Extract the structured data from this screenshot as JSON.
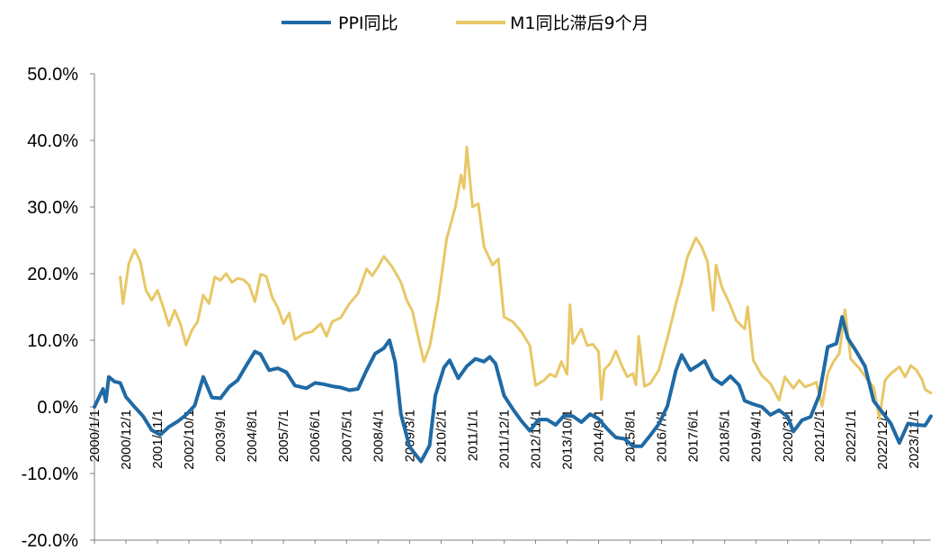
{
  "chart_data": {
    "type": "line",
    "title": "",
    "xlabel": "",
    "ylabel": "",
    "ylim": [
      -0.2,
      0.5
    ],
    "y_ticks": [
      "50.0%",
      "40.0%",
      "30.0%",
      "20.0%",
      "10.0%",
      "0.0%",
      "-10.0%",
      "-20.0%"
    ],
    "x_tick_labels": [
      "2000/1/1",
      "2000/12/1",
      "2001/11/1",
      "2002/10/1",
      "2003/9/1",
      "2004/8/1",
      "2005/7/1",
      "2006/6/1",
      "2007/5/1",
      "2008/4/1",
      "2009/3/1",
      "2010/2/1",
      "2011/1/1",
      "2011/12/1",
      "2012/11/1",
      "2013/10/1",
      "2014/9/1",
      "2015/8/1",
      "2016/7/1",
      "2017/6/1",
      "2018/5/1",
      "2019/4/1",
      "2020/3/1",
      "2021/2/1",
      "2022/1/1",
      "2022/12/1",
      "2023/11/1"
    ],
    "legend_position": "top",
    "grid": false,
    "series": [
      {
        "name": "PPI同比",
        "color": "#1f6aa5",
        "points": [
          [
            "2000/1",
            0.0
          ],
          [
            "2000/4",
            0.027
          ],
          [
            "2000/5",
            0.008
          ],
          [
            "2000/6",
            0.045
          ],
          [
            "2000/8",
            0.038
          ],
          [
            "2000/10",
            0.036
          ],
          [
            "2000/12",
            0.015
          ],
          [
            "2001/3",
            0.0
          ],
          [
            "2001/6",
            -0.014
          ],
          [
            "2001/9",
            -0.035
          ],
          [
            "2001/12",
            -0.042
          ],
          [
            "2002/3",
            -0.03
          ],
          [
            "2002/6",
            -0.022
          ],
          [
            "2002/9",
            -0.012
          ],
          [
            "2002/12",
            0.002
          ],
          [
            "2003/3",
            0.045
          ],
          [
            "2003/6",
            0.014
          ],
          [
            "2003/9",
            0.013
          ],
          [
            "2003/12",
            0.03
          ],
          [
            "2004/3",
            0.04
          ],
          [
            "2004/6",
            0.062
          ],
          [
            "2004/9",
            0.083
          ],
          [
            "2004/11",
            0.079
          ],
          [
            "2005/2",
            0.055
          ],
          [
            "2005/5",
            0.058
          ],
          [
            "2005/8",
            0.052
          ],
          [
            "2005/11",
            0.032
          ],
          [
            "2006/3",
            0.028
          ],
          [
            "2006/6",
            0.036
          ],
          [
            "2006/9",
            0.034
          ],
          [
            "2006/12",
            0.031
          ],
          [
            "2007/3",
            0.029
          ],
          [
            "2007/6",
            0.025
          ],
          [
            "2007/9",
            0.027
          ],
          [
            "2007/12",
            0.055
          ],
          [
            "2008/3",
            0.08
          ],
          [
            "2008/6",
            0.088
          ],
          [
            "2008/8",
            0.1
          ],
          [
            "2008/10",
            0.067
          ],
          [
            "2008/12",
            -0.011
          ],
          [
            "2009/3",
            -0.06
          ],
          [
            "2009/7",
            -0.082
          ],
          [
            "2009/10",
            -0.058
          ],
          [
            "2009/12",
            0.017
          ],
          [
            "2010/3",
            0.059
          ],
          [
            "2010/5",
            0.07
          ],
          [
            "2010/8",
            0.043
          ],
          [
            "2010/11",
            0.061
          ],
          [
            "2011/2",
            0.072
          ],
          [
            "2011/5",
            0.068
          ],
          [
            "2011/7",
            0.075
          ],
          [
            "2011/9",
            0.065
          ],
          [
            "2011/12",
            0.017
          ],
          [
            "2012/3",
            -0.003
          ],
          [
            "2012/6",
            -0.021
          ],
          [
            "2012/9",
            -0.036
          ],
          [
            "2012/12",
            -0.019
          ],
          [
            "2013/3",
            -0.019
          ],
          [
            "2013/6",
            -0.027
          ],
          [
            "2013/9",
            -0.013
          ],
          [
            "2013/12",
            -0.014
          ],
          [
            "2014/3",
            -0.023
          ],
          [
            "2014/6",
            -0.011
          ],
          [
            "2014/9",
            -0.018
          ],
          [
            "2014/12",
            -0.033
          ],
          [
            "2015/3",
            -0.046
          ],
          [
            "2015/6",
            -0.048
          ],
          [
            "2015/9",
            -0.059
          ],
          [
            "2015/12",
            -0.059
          ],
          [
            "2016/3",
            -0.043
          ],
          [
            "2016/6",
            -0.026
          ],
          [
            "2016/9",
            0.001
          ],
          [
            "2016/12",
            0.055
          ],
          [
            "2017/2",
            0.078
          ],
          [
            "2017/5",
            0.055
          ],
          [
            "2017/8",
            0.063
          ],
          [
            "2017/10",
            0.069
          ],
          [
            "2018/1",
            0.043
          ],
          [
            "2018/4",
            0.034
          ],
          [
            "2018/7",
            0.046
          ],
          [
            "2018/10",
            0.033
          ],
          [
            "2018/12",
            0.009
          ],
          [
            "2019/3",
            0.004
          ],
          [
            "2019/6",
            0.0
          ],
          [
            "2019/9",
            -0.012
          ],
          [
            "2019/12",
            -0.005
          ],
          [
            "2020/3",
            -0.015
          ],
          [
            "2020/5",
            -0.037
          ],
          [
            "2020/8",
            -0.02
          ],
          [
            "2020/11",
            -0.015
          ],
          [
            "2021/2",
            0.017
          ],
          [
            "2021/5",
            0.09
          ],
          [
            "2021/8",
            0.095
          ],
          [
            "2021/10",
            0.135
          ],
          [
            "2021/12",
            0.103
          ],
          [
            "2022/3",
            0.083
          ],
          [
            "2022/6",
            0.061
          ],
          [
            "2022/9",
            0.009
          ],
          [
            "2022/12",
            -0.008
          ],
          [
            "2023/3",
            -0.025
          ],
          [
            "2023/6",
            -0.054
          ],
          [
            "2023/9",
            -0.025
          ],
          [
            "2023/12",
            -0.027
          ],
          [
            "2024/3",
            -0.028
          ],
          [
            "2024/5",
            -0.014
          ]
        ]
      },
      {
        "name": "M1同比滞后9个月",
        "color": "#e8c766",
        "points": [
          [
            "2000/10",
            0.195
          ],
          [
            "2000/11",
            0.155
          ],
          [
            "2001/1",
            0.215
          ],
          [
            "2001/3",
            0.236
          ],
          [
            "2001/5",
            0.218
          ],
          [
            "2001/7",
            0.175
          ],
          [
            "2001/9",
            0.16
          ],
          [
            "2001/11",
            0.175
          ],
          [
            "2002/1",
            0.15
          ],
          [
            "2002/3",
            0.122
          ],
          [
            "2002/5",
            0.145
          ],
          [
            "2002/7",
            0.125
          ],
          [
            "2002/9",
            0.093
          ],
          [
            "2002/11",
            0.115
          ],
          [
            "2003/1",
            0.128
          ],
          [
            "2003/3",
            0.168
          ],
          [
            "2003/5",
            0.155
          ],
          [
            "2003/7",
            0.195
          ],
          [
            "2003/9",
            0.19
          ],
          [
            "2003/11",
            0.2
          ],
          [
            "2004/1",
            0.187
          ],
          [
            "2004/3",
            0.193
          ],
          [
            "2004/5",
            0.191
          ],
          [
            "2004/7",
            0.183
          ],
          [
            "2004/9",
            0.158
          ],
          [
            "2004/11",
            0.199
          ],
          [
            "2005/1",
            0.196
          ],
          [
            "2005/3",
            0.165
          ],
          [
            "2005/5",
            0.149
          ],
          [
            "2005/7",
            0.125
          ],
          [
            "2005/9",
            0.141
          ],
          [
            "2005/11",
            0.101
          ],
          [
            "2006/2",
            0.11
          ],
          [
            "2006/5",
            0.113
          ],
          [
            "2006/8",
            0.125
          ],
          [
            "2006/10",
            0.106
          ],
          [
            "2006/12",
            0.128
          ],
          [
            "2007/3",
            0.134
          ],
          [
            "2007/6",
            0.155
          ],
          [
            "2007/9",
            0.17
          ],
          [
            "2007/12",
            0.207
          ],
          [
            "2008/2",
            0.197
          ],
          [
            "2008/4",
            0.21
          ],
          [
            "2008/6",
            0.226
          ],
          [
            "2008/9",
            0.21
          ],
          [
            "2008/12",
            0.187
          ],
          [
            "2009/2",
            0.16
          ],
          [
            "2009/4",
            0.144
          ],
          [
            "2009/6",
            0.105
          ],
          [
            "2009/8",
            0.068
          ],
          [
            "2009/10",
            0.09
          ],
          [
            "2010/1",
            0.16
          ],
          [
            "2010/4",
            0.253
          ],
          [
            "2010/7",
            0.3
          ],
          [
            "2010/9",
            0.348
          ],
          [
            "2010/10",
            0.328
          ],
          [
            "2010/11",
            0.39
          ],
          [
            "2011/1",
            0.3
          ],
          [
            "2011/3",
            0.305
          ],
          [
            "2011/5",
            0.24
          ],
          [
            "2011/8",
            0.213
          ],
          [
            "2011/10",
            0.222
          ],
          [
            "2011/12",
            0.135
          ],
          [
            "2012/3",
            0.128
          ],
          [
            "2012/6",
            0.113
          ],
          [
            "2012/9",
            0.092
          ],
          [
            "2012/11",
            0.032
          ],
          [
            "2013/2",
            0.04
          ],
          [
            "2013/4",
            0.049
          ],
          [
            "2013/6",
            0.045
          ],
          [
            "2013/8",
            0.068
          ],
          [
            "2013/10",
            0.049
          ],
          [
            "2013/11",
            0.153
          ],
          [
            "2013/12",
            0.095
          ],
          [
            "2014/3",
            0.117
          ],
          [
            "2014/5",
            0.092
          ],
          [
            "2014/7",
            0.094
          ],
          [
            "2014/9",
            0.083
          ],
          [
            "2014/10",
            0.011
          ],
          [
            "2014/11",
            0.056
          ],
          [
            "2015/1",
            0.065
          ],
          [
            "2015/3",
            0.084
          ],
          [
            "2015/5",
            0.063
          ],
          [
            "2015/7",
            0.045
          ],
          [
            "2015/9",
            0.05
          ],
          [
            "2015/10",
            0.033
          ],
          [
            "2015/11",
            0.106
          ],
          [
            "2016/1",
            0.031
          ],
          [
            "2016/3",
            0.035
          ],
          [
            "2016/6",
            0.055
          ],
          [
            "2016/9",
            0.103
          ],
          [
            "2016/12",
            0.155
          ],
          [
            "2017/2",
            0.187
          ],
          [
            "2017/4",
            0.225
          ],
          [
            "2017/7",
            0.254
          ],
          [
            "2017/9",
            0.24
          ],
          [
            "2017/11",
            0.218
          ],
          [
            "2018/1",
            0.145
          ],
          [
            "2018/2",
            0.213
          ],
          [
            "2018/4",
            0.18
          ],
          [
            "2018/7",
            0.152
          ],
          [
            "2018/9",
            0.13
          ],
          [
            "2018/12",
            0.117
          ],
          [
            "2019/1",
            0.15
          ],
          [
            "2019/3",
            0.07
          ],
          [
            "2019/6",
            0.047
          ],
          [
            "2019/9",
            0.035
          ],
          [
            "2019/12",
            0.01
          ],
          [
            "2020/2",
            0.045
          ],
          [
            "2020/5",
            0.028
          ],
          [
            "2020/7",
            0.04
          ],
          [
            "2020/9",
            0.03
          ],
          [
            "2020/11",
            0.033
          ],
          [
            "2021/1",
            0.037
          ],
          [
            "2021/3",
            0.001
          ],
          [
            "2021/5",
            0.05
          ],
          [
            "2021/7",
            0.068
          ],
          [
            "2021/9",
            0.08
          ],
          [
            "2021/11",
            0.146
          ],
          [
            "2022/1",
            0.072
          ],
          [
            "2022/4",
            0.058
          ],
          [
            "2022/7",
            0.04
          ],
          [
            "2022/9",
            0.03
          ],
          [
            "2022/11",
            -0.018
          ],
          [
            "2023/1",
            0.04
          ],
          [
            "2023/3",
            0.05
          ],
          [
            "2023/6",
            0.06
          ],
          [
            "2023/8",
            0.045
          ],
          [
            "2023/10",
            0.062
          ],
          [
            "2023/12",
            0.055
          ],
          [
            "2024/2",
            0.04
          ],
          [
            "2024/3",
            0.026
          ],
          [
            "2024/5",
            0.021
          ]
        ]
      }
    ]
  }
}
